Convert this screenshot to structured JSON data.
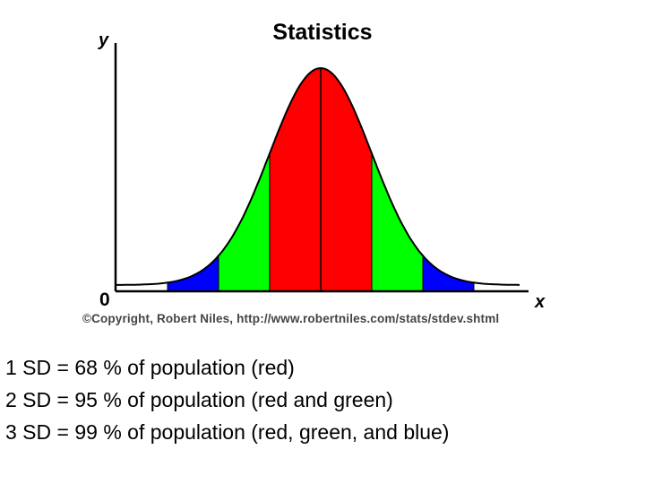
{
  "chart_data": {
    "type": "area",
    "title": "Statistics",
    "xlabel": "x",
    "ylabel": "y",
    "y_origin_label": "0",
    "distribution": "normal",
    "mean": 0,
    "sd": 1,
    "x_range": [
      -4,
      4
    ],
    "bands": [
      {
        "from": -1,
        "to": 1,
        "color": "#ff0000",
        "name": "red"
      },
      {
        "from": -2,
        "to": -1,
        "color": "#00ff00",
        "name": "green"
      },
      {
        "from": 1,
        "to": 2,
        "color": "#00ff00",
        "name": "green"
      },
      {
        "from": -3,
        "to": -2,
        "color": "#0000ff",
        "name": "blue"
      },
      {
        "from": 2,
        "to": 3,
        "color": "#0000ff",
        "name": "blue"
      }
    ],
    "center_line": true,
    "credit": "©Copyright, Robert Niles, http://www.robertniles.com/stats/stdev.shtml"
  },
  "notes": [
    "1 SD = 68 % of population (red)",
    "2 SD = 95 % of population (red and green)",
    "3 SD = 99 % of population (red, green, and blue)"
  ]
}
